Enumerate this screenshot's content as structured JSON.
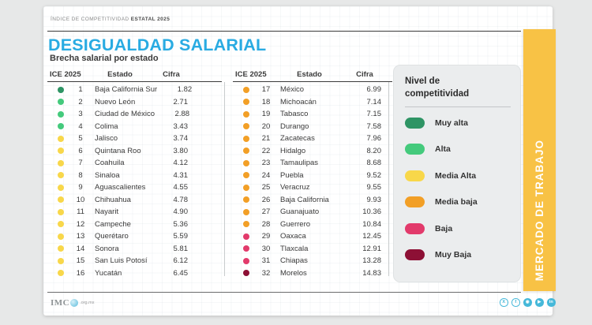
{
  "header": {
    "kicker": "ÍNDICE DE COMPETITIVIDAD ",
    "kicker_bold": "ESTATAL 2025"
  },
  "title": "DESIGUALDAD SALARIAL",
  "subtitle": "Brecha salarial por estado",
  "side_banner": {
    "label": "MERCADO DE TRABAJO",
    "color": "#F8C245"
  },
  "accent_colors": {
    "title_blue": "#29abe2",
    "social_blue": "#45b8d9"
  },
  "chart_data": {
    "type": "table",
    "title": "DESIGUALDAD SALARIAL",
    "subtitle": "Brecha salarial por estado",
    "columns": [
      "ICE 2025",
      "Estado",
      "Cifra"
    ],
    "layout": "rows 1-16 in left column, rows 17-32 in right column",
    "level_colors": {
      "Muy alta": "#2E9464",
      "Alta": "#44CA7C",
      "Media Alta": "#F8D74A",
      "Media baja": "#F29F26",
      "Baja": "#E23A6B",
      "Muy Baja": "#8D1035"
    },
    "rows": [
      {
        "rank": 1,
        "state": "Baja California Sur",
        "value": "1.82",
        "level": "Muy alta"
      },
      {
        "rank": 2,
        "state": "Nuevo León",
        "value": "2.71",
        "level": "Alta"
      },
      {
        "rank": 3,
        "state": "Ciudad de México",
        "value": "2.88",
        "level": "Alta"
      },
      {
        "rank": 4,
        "state": "Colima",
        "value": "3.43",
        "level": "Alta"
      },
      {
        "rank": 5,
        "state": "Jalisco",
        "value": "3.74",
        "level": "Media Alta"
      },
      {
        "rank": 6,
        "state": "Quintana Roo",
        "value": "3.80",
        "level": "Media Alta"
      },
      {
        "rank": 7,
        "state": "Coahuila",
        "value": "4.12",
        "level": "Media Alta"
      },
      {
        "rank": 8,
        "state": "Sinaloa",
        "value": "4.31",
        "level": "Media Alta"
      },
      {
        "rank": 9,
        "state": "Aguascalientes",
        "value": "4.55",
        "level": "Media Alta"
      },
      {
        "rank": 10,
        "state": "Chihuahua",
        "value": "4.78",
        "level": "Media Alta"
      },
      {
        "rank": 11,
        "state": "Nayarit",
        "value": "4.90",
        "level": "Media Alta"
      },
      {
        "rank": 12,
        "state": "Campeche",
        "value": "5.36",
        "level": "Media Alta"
      },
      {
        "rank": 13,
        "state": "Querétaro",
        "value": "5.59",
        "level": "Media Alta"
      },
      {
        "rank": 14,
        "state": "Sonora",
        "value": "5.81",
        "level": "Media Alta"
      },
      {
        "rank": 15,
        "state": "San Luis Potosí",
        "value": "6.12",
        "level": "Media Alta"
      },
      {
        "rank": 16,
        "state": "Yucatán",
        "value": "6.45",
        "level": "Media Alta"
      },
      {
        "rank": 17,
        "state": "México",
        "value": "6.99",
        "level": "Media baja"
      },
      {
        "rank": 18,
        "state": "Michoacán",
        "value": "7.14",
        "level": "Media baja"
      },
      {
        "rank": 19,
        "state": "Tabasco",
        "value": "7.15",
        "level": "Media baja"
      },
      {
        "rank": 20,
        "state": "Durango",
        "value": "7.58",
        "level": "Media baja"
      },
      {
        "rank": 21,
        "state": "Zacatecas",
        "value": "7.96",
        "level": "Media baja"
      },
      {
        "rank": 22,
        "state": "Hidalgo",
        "value": "8.20",
        "level": "Media baja"
      },
      {
        "rank": 23,
        "state": "Tamaulipas",
        "value": "8.68",
        "level": "Media baja"
      },
      {
        "rank": 24,
        "state": "Puebla",
        "value": "9.52",
        "level": "Media baja"
      },
      {
        "rank": 25,
        "state": "Veracruz",
        "value": "9.55",
        "level": "Media baja"
      },
      {
        "rank": 26,
        "state": "Baja California",
        "value": "9.93",
        "level": "Media baja"
      },
      {
        "rank": 27,
        "state": "Guanajuato",
        "value": "10.36",
        "level": "Media baja"
      },
      {
        "rank": 28,
        "state": "Guerrero",
        "value": "10.84",
        "level": "Media baja"
      },
      {
        "rank": 29,
        "state": "Oaxaca",
        "value": "12.45",
        "level": "Baja"
      },
      {
        "rank": 30,
        "state": "Tlaxcala",
        "value": "12.91",
        "level": "Baja"
      },
      {
        "rank": 31,
        "state": "Chiapas",
        "value": "13.28",
        "level": "Baja"
      },
      {
        "rank": 32,
        "state": "Morelos",
        "value": "14.83",
        "level": "Muy Baja"
      }
    ]
  },
  "legend": {
    "title": "Nivel de competitividad",
    "items": [
      {
        "label": "Muy alta",
        "color": "#2E9464"
      },
      {
        "label": "Alta",
        "color": "#44CA7C"
      },
      {
        "label": "Media Alta",
        "color": "#F8D74A"
      },
      {
        "label": "Media baja",
        "color": "#F29F26"
      },
      {
        "label": "Baja",
        "color": "#E23A6B"
      },
      {
        "label": "Muy Baja",
        "color": "#8D1035"
      }
    ]
  },
  "footer": {
    "logo_text": "IMC",
    "logo_suffix": ".org.mx",
    "social": [
      {
        "name": "x-twitter-icon",
        "glyph": "X",
        "style": "outline"
      },
      {
        "name": "facebook-icon",
        "glyph": "f",
        "style": "outline"
      },
      {
        "name": "instagram-icon",
        "glyph": "◉",
        "style": "solid"
      },
      {
        "name": "youtube-icon",
        "glyph": "▶",
        "style": "solid"
      },
      {
        "name": "linkedin-icon",
        "glyph": "in",
        "style": "solid"
      }
    ]
  }
}
